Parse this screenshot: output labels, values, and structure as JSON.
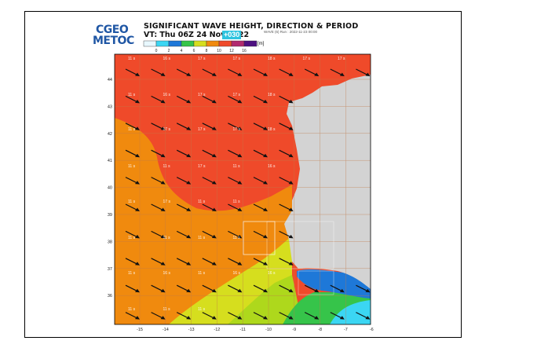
{
  "header": {
    "logo_line1": "CGEO",
    "logo_line2": "METOC",
    "title": "SIGNIFICANT WAVE HEIGHT, DIRECTION & PERIOD",
    "valid_time": "VT: Thu 06Z 24 Nov 2022",
    "forecast_offset": "+030",
    "run_info": "WAVE (6) Run : 2022-11-23 00:00",
    "colorbar_unit": "[m]"
  },
  "colorbar": {
    "ticks": [
      "0",
      "2",
      "4",
      "6",
      "8",
      "10",
      "12",
      "16"
    ],
    "colors": [
      "#e8f8ff",
      "#3bd6f3",
      "#1e78d8",
      "#36c44a",
      "#d6de1e",
      "#f08a0e",
      "#ef4a2a",
      "#b22a6e",
      "#4d1080"
    ]
  },
  "map": {
    "lat_labels": [
      "44",
      "43",
      "42",
      "41",
      "40",
      "39",
      "38",
      "37",
      "36"
    ],
    "lon_labels": [
      "-15",
      "-14",
      "-13",
      "-12",
      "-11",
      "-10",
      "-9",
      "-8",
      "-7",
      "-6"
    ],
    "period_labels": {
      "row1": [
        "11 s",
        "16 s",
        "17 s",
        "17 s",
        "18 s",
        "17 s",
        "17 s"
      ],
      "row2": [
        "11 s",
        "16 s",
        "17 s",
        "17 s",
        "18 s"
      ],
      "row3": [
        "11 s",
        "17 s",
        "17 s",
        "17 s",
        "18 s"
      ],
      "row4": [
        "11 s",
        "11 s",
        "17 s",
        "11 s",
        "16 s"
      ],
      "row5": [
        "11 s",
        "17 s",
        "11 s",
        "11 s"
      ],
      "row6": [
        "11 s",
        "11 s",
        "11 s",
        "11 s"
      ],
      "row7": [
        "11 s",
        "16 s",
        "11 s",
        "16 s",
        "16 s"
      ],
      "row8": [
        "11 s",
        "11 s",
        "11 s"
      ]
    },
    "land_color": "#d3d3d3",
    "arrow_color": "#111111"
  }
}
